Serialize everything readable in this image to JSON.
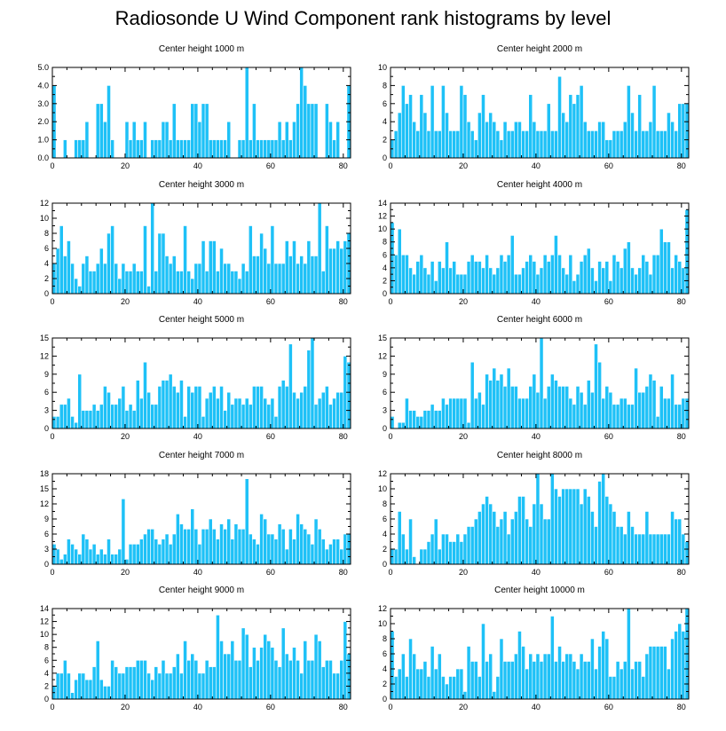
{
  "title": "Radiosonde U Wind Component rank histograms by level",
  "colors": {
    "bar": "#1ec1f7",
    "bar_edge": "#ffffff",
    "axis": "#000000"
  },
  "chart_data": [
    {
      "type": "bar",
      "title": "Center height 1000 m",
      "xlim": [
        0,
        82
      ],
      "ylim": [
        0,
        5
      ],
      "xticks": [
        0,
        20,
        40,
        60,
        80
      ],
      "yticks": [
        0,
        1,
        2,
        3,
        4,
        5
      ],
      "ytick_labels": [
        "0.0",
        "1.0",
        "2.0",
        "3.0",
        "4.0",
        "5.0"
      ],
      "x_start": 0,
      "values": [
        4,
        0,
        0,
        1,
        0,
        0,
        1,
        1,
        1,
        2,
        0,
        0,
        3,
        3,
        2,
        4,
        1,
        0,
        0,
        0,
        2,
        1,
        2,
        1,
        1,
        2,
        0,
        1,
        1,
        1,
        2,
        2,
        1,
        3,
        1,
        1,
        1,
        1,
        3,
        3,
        2,
        3,
        3,
        1,
        1,
        1,
        1,
        1,
        2,
        0,
        0,
        1,
        1,
        5,
        1,
        3,
        1,
        1,
        1,
        1,
        1,
        1,
        2,
        1,
        2,
        1,
        2,
        3,
        5,
        4,
        3,
        3,
        3,
        0,
        0,
        3,
        2,
        1,
        2,
        0,
        0,
        4
      ]
    },
    {
      "type": "bar",
      "title": "Center height 2000 m",
      "xlim": [
        0,
        82
      ],
      "ylim": [
        0,
        10
      ],
      "xticks": [
        0,
        20,
        40,
        60,
        80
      ],
      "yticks": [
        0,
        2,
        4,
        6,
        8,
        10
      ],
      "ytick_labels": [
        "0",
        "2",
        "4",
        "6",
        "8",
        "10"
      ],
      "x_start": 0,
      "values": [
        2,
        3,
        5,
        8,
        6,
        7,
        4,
        3,
        7,
        5,
        3,
        8,
        3,
        3,
        8,
        5,
        3,
        3,
        3,
        8,
        7,
        4,
        3,
        2,
        5,
        7,
        4,
        5,
        4,
        3,
        2,
        4,
        3,
        3,
        4,
        4,
        3,
        3,
        7,
        4,
        3,
        3,
        3,
        6,
        3,
        3,
        9,
        5,
        4,
        7,
        6,
        7,
        8,
        4,
        3,
        3,
        3,
        4,
        4,
        2,
        2,
        3,
        3,
        3,
        4,
        8,
        5,
        3,
        7,
        3,
        3,
        4,
        8,
        3,
        3,
        3,
        5,
        4,
        3,
        6,
        6,
        6
      ]
    },
    {
      "type": "bar",
      "title": "Center height 3000 m",
      "xlim": [
        0,
        82
      ],
      "ylim": [
        0,
        12
      ],
      "xticks": [
        0,
        20,
        40,
        60,
        80
      ],
      "yticks": [
        0,
        2,
        4,
        6,
        8,
        10,
        12
      ],
      "ytick_labels": [
        "0",
        "2",
        "4",
        "6",
        "8",
        "10",
        "12"
      ],
      "x_start": 0,
      "values": [
        4,
        6,
        9,
        5,
        7,
        4,
        2,
        1,
        4,
        5,
        3,
        3,
        4,
        6,
        4,
        8,
        9,
        4,
        2,
        4,
        3,
        3,
        4,
        3,
        3,
        9,
        1,
        12,
        3,
        8,
        8,
        5,
        4,
        5,
        3,
        3,
        9,
        3,
        2,
        4,
        4,
        7,
        3,
        7,
        7,
        3,
        6,
        4,
        4,
        3,
        3,
        2,
        4,
        3,
        9,
        5,
        5,
        8,
        6,
        4,
        9,
        4,
        4,
        4,
        7,
        5,
        7,
        4,
        5,
        4,
        7,
        5,
        5,
        12,
        3,
        9,
        6,
        6,
        7,
        6,
        7,
        8
      ]
    },
    {
      "type": "bar",
      "title": "Center height 4000 m",
      "xlim": [
        0,
        82
      ],
      "ylim": [
        0,
        14
      ],
      "xticks": [
        0,
        20,
        40,
        60,
        80
      ],
      "yticks": [
        0,
        2,
        4,
        6,
        8,
        10,
        12,
        14
      ],
      "ytick_labels": [
        "0",
        "2",
        "4",
        "6",
        "8",
        "10",
        "12",
        "14"
      ],
      "x_start": 0,
      "values": [
        11,
        6,
        10,
        6,
        6,
        4,
        3,
        5,
        6,
        4,
        3,
        5,
        2,
        5,
        4,
        8,
        4,
        5,
        3,
        3,
        3,
        5,
        6,
        5,
        5,
        4,
        6,
        4,
        3,
        4,
        6,
        5,
        6,
        9,
        3,
        3,
        4,
        5,
        6,
        5,
        3,
        4,
        6,
        5,
        6,
        9,
        6,
        4,
        3,
        6,
        2,
        3,
        5,
        6,
        7,
        4,
        2,
        5,
        4,
        5,
        2,
        6,
        5,
        4,
        7,
        8,
        4,
        3,
        4,
        6,
        5,
        3,
        6,
        6,
        10,
        8,
        8,
        4,
        6,
        5,
        4,
        13
      ]
    },
    {
      "type": "bar",
      "title": "Center height 5000 m",
      "xlim": [
        0,
        82
      ],
      "ylim": [
        0,
        15
      ],
      "xticks": [
        0,
        20,
        40,
        60,
        80
      ],
      "yticks": [
        0,
        3,
        6,
        9,
        12,
        15
      ],
      "ytick_labels": [
        "0",
        "3",
        "6",
        "9",
        "12",
        "15"
      ],
      "x_start": 0,
      "values": [
        2,
        2,
        4,
        4,
        5,
        2,
        1,
        9,
        3,
        3,
        3,
        4,
        3,
        4,
        7,
        6,
        4,
        4,
        5,
        7,
        3,
        4,
        3,
        8,
        5,
        11,
        6,
        4,
        4,
        7,
        8,
        8,
        9,
        7,
        6,
        8,
        2,
        7,
        6,
        7,
        7,
        2,
        5,
        6,
        7,
        5,
        7,
        3,
        6,
        4,
        5,
        5,
        4,
        5,
        4,
        7,
        7,
        7,
        5,
        4,
        5,
        2,
        7,
        8,
        7,
        14,
        6,
        5,
        6,
        7,
        13,
        15,
        4,
        5,
        6,
        7,
        4,
        5,
        6,
        6,
        12,
        11
      ]
    },
    {
      "type": "bar",
      "title": "Center height 6000 m",
      "xlim": [
        0,
        82
      ],
      "ylim": [
        0,
        15
      ],
      "xticks": [
        0,
        20,
        40,
        60,
        80
      ],
      "yticks": [
        0,
        3,
        6,
        9,
        12,
        15
      ],
      "ytick_labels": [
        "0",
        "3",
        "6",
        "9",
        "12",
        "15"
      ],
      "x_start": 0,
      "values": [
        2,
        0,
        1,
        1,
        5,
        3,
        3,
        2,
        2,
        3,
        3,
        4,
        3,
        3,
        5,
        4,
        5,
        5,
        5,
        5,
        5,
        1,
        11,
        5,
        6,
        4,
        9,
        8,
        10,
        8,
        9,
        7,
        10,
        7,
        7,
        5,
        5,
        5,
        7,
        9,
        6,
        15,
        5,
        7,
        9,
        8,
        7,
        7,
        7,
        5,
        4,
        7,
        6,
        4,
        8,
        6,
        14,
        11,
        5,
        7,
        6,
        4,
        4,
        5,
        5,
        4,
        4,
        10,
        6,
        6,
        7,
        9,
        8,
        2,
        7,
        5,
        5,
        9,
        4,
        4,
        5,
        5
      ]
    },
    {
      "type": "bar",
      "title": "Center height 7000 m",
      "xlim": [
        0,
        82
      ],
      "ylim": [
        0,
        18
      ],
      "xticks": [
        0,
        20,
        40,
        60,
        80
      ],
      "yticks": [
        0,
        3,
        6,
        9,
        12,
        15,
        18
      ],
      "ytick_labels": [
        "0",
        "3",
        "6",
        "9",
        "12",
        "15",
        "18"
      ],
      "x_start": 0,
      "values": [
        4,
        3,
        1,
        2,
        5,
        4,
        3,
        2,
        6,
        5,
        3,
        4,
        2,
        3,
        2,
        5,
        2,
        2,
        3,
        13,
        1,
        4,
        4,
        4,
        5,
        6,
        7,
        7,
        5,
        4,
        5,
        6,
        4,
        6,
        10,
        8,
        7,
        7,
        11,
        7,
        4,
        7,
        7,
        9,
        7,
        5,
        8,
        7,
        9,
        5,
        8,
        7,
        7,
        17,
        6,
        5,
        4,
        10,
        9,
        6,
        6,
        5,
        8,
        7,
        3,
        7,
        5,
        10,
        8,
        7,
        6,
        4,
        9,
        7,
        5,
        3,
        4,
        5,
        5,
        3,
        6,
        6
      ]
    },
    {
      "type": "bar",
      "title": "Center height 8000 m",
      "xlim": [
        0,
        82
      ],
      "ylim": [
        0,
        12
      ],
      "xticks": [
        0,
        20,
        40,
        60,
        80
      ],
      "yticks": [
        0,
        2,
        4,
        6,
        8,
        10,
        12
      ],
      "ytick_labels": [
        "0",
        "2",
        "4",
        "6",
        "8",
        "10",
        "12"
      ],
      "x_start": 0,
      "values": [
        2,
        2,
        7,
        4,
        2,
        6,
        1,
        0,
        2,
        2,
        3,
        4,
        6,
        2,
        4,
        4,
        3,
        3,
        4,
        3,
        4,
        5,
        5,
        6,
        7,
        8,
        9,
        8,
        7,
        5,
        6,
        7,
        4,
        6,
        7,
        9,
        9,
        6,
        5,
        8,
        12,
        8,
        6,
        6,
        12,
        10,
        9,
        10,
        10,
        10,
        10,
        10,
        8,
        10,
        9,
        7,
        5,
        11,
        12,
        9,
        8,
        7,
        5,
        5,
        4,
        7,
        5,
        4,
        4,
        4,
        7,
        4,
        4,
        4,
        4,
        4,
        4,
        7,
        6,
        6,
        4,
        3
      ]
    },
    {
      "type": "bar",
      "title": "Center height 9000 m",
      "xlim": [
        0,
        82
      ],
      "ylim": [
        0,
        14
      ],
      "xticks": [
        0,
        20,
        40,
        60,
        80
      ],
      "yticks": [
        0,
        2,
        4,
        6,
        8,
        10,
        12,
        14
      ],
      "ytick_labels": [
        "0",
        "2",
        "4",
        "6",
        "8",
        "10",
        "12",
        "14"
      ],
      "x_start": 0,
      "values": [
        2,
        4,
        4,
        6,
        4,
        1,
        3,
        4,
        4,
        3,
        3,
        5,
        9,
        3,
        2,
        2,
        6,
        5,
        4,
        4,
        5,
        5,
        5,
        6,
        6,
        6,
        4,
        3,
        5,
        4,
        6,
        4,
        4,
        5,
        7,
        4,
        9,
        6,
        7,
        6,
        4,
        4,
        6,
        5,
        5,
        13,
        9,
        7,
        7,
        9,
        6,
        6,
        11,
        10,
        5,
        8,
        6,
        8,
        10,
        9,
        8,
        6,
        5,
        11,
        7,
        6,
        8,
        6,
        4,
        9,
        6,
        6,
        10,
        9,
        5,
        6,
        6,
        4,
        4,
        6,
        12,
        7
      ]
    },
    {
      "type": "bar",
      "title": "Center height 10000 m",
      "xlim": [
        0,
        82
      ],
      "ylim": [
        0,
        12
      ],
      "xticks": [
        0,
        20,
        40,
        60,
        80
      ],
      "yticks": [
        0,
        2,
        4,
        6,
        8,
        10,
        12
      ],
      "ytick_labels": [
        "0",
        "2",
        "4",
        "6",
        "8",
        "10",
        "12"
      ],
      "x_start": 0,
      "values": [
        9,
        3,
        4,
        6,
        3,
        8,
        6,
        4,
        4,
        5,
        3,
        7,
        4,
        6,
        3,
        2,
        3,
        3,
        4,
        4,
        1,
        7,
        5,
        5,
        3,
        10,
        5,
        6,
        1,
        3,
        8,
        5,
        5,
        5,
        6,
        9,
        7,
        4,
        6,
        5,
        6,
        5,
        6,
        6,
        11,
        5,
        7,
        5,
        6,
        6,
        5,
        4,
        6,
        5,
        5,
        8,
        4,
        7,
        9,
        8,
        3,
        3,
        5,
        4,
        5,
        12,
        4,
        5,
        5,
        3,
        6,
        7,
        7,
        7,
        7,
        7,
        4,
        8,
        9,
        10,
        9,
        12
      ]
    }
  ]
}
